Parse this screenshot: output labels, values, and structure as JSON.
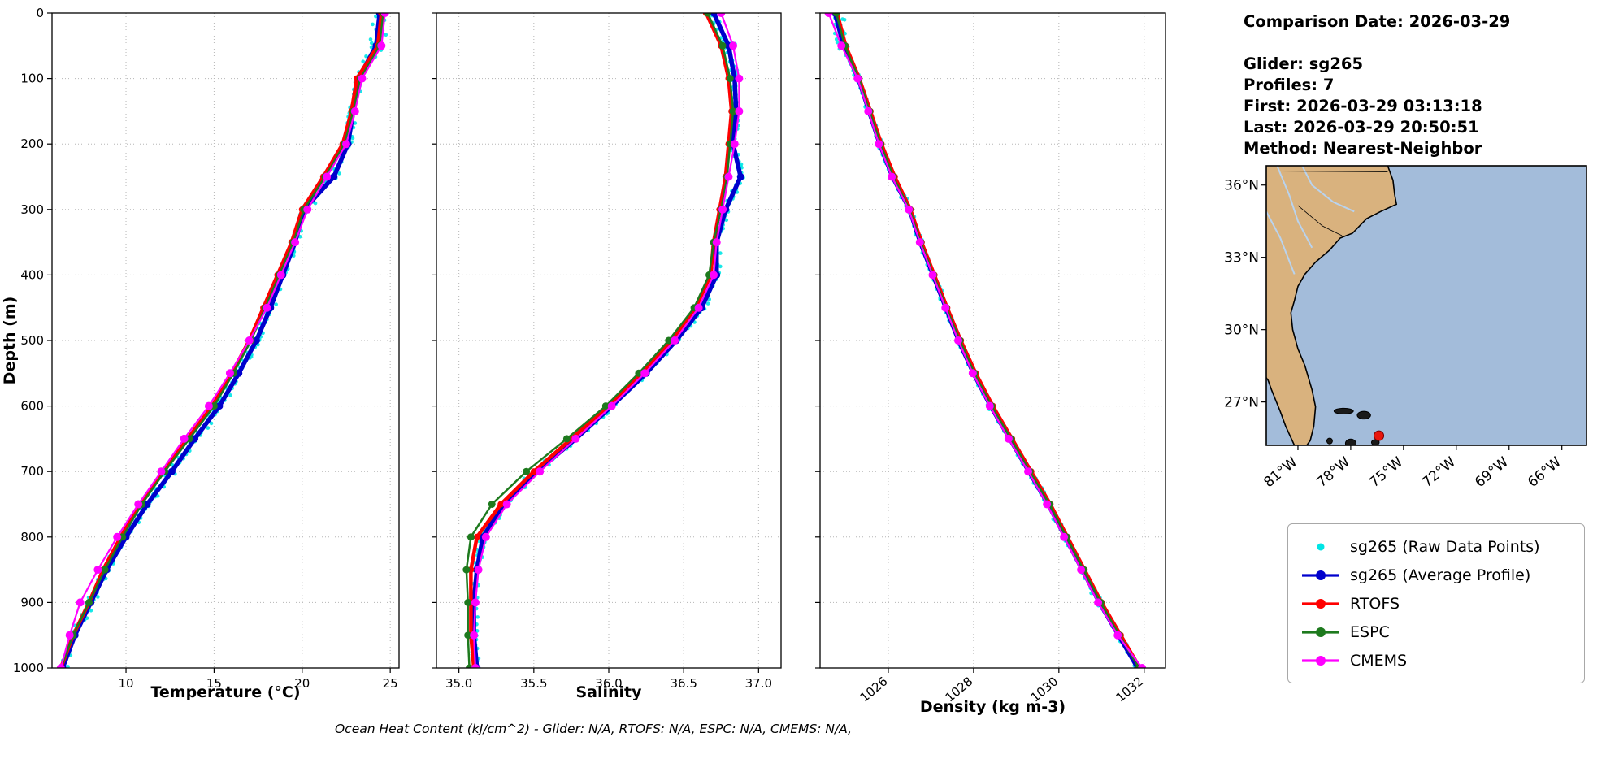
{
  "info": {
    "comparison_date": "Comparison Date: 2026-03-29",
    "glider": "Glider: sg265",
    "profiles": "Profiles: 7",
    "first": "First: 2026-03-29 03:13:18",
    "last": "Last: 2026-03-29 20:50:51",
    "method": "Method: Nearest-Neighbor"
  },
  "caption": "Ocean Heat Content (kJ/cm^2) - Glider: N/A,  RTOFS: N/A,  ESPC: N/A,  CMEMS: N/A,",
  "legend": {
    "entries": [
      {
        "label": "sg265 (Raw Data Points)",
        "color": "#00e5e5",
        "line": false,
        "marker_r": 4.5
      },
      {
        "label": "sg265 (Average Profile)",
        "color": "#0000cd",
        "line": true,
        "marker_r": 6
      },
      {
        "label": "RTOFS",
        "color": "#ff0000",
        "line": true,
        "marker_r": 6
      },
      {
        "label": "ESPC",
        "color": "#1e7a1e",
        "line": true,
        "marker_r": 6
      },
      {
        "label": "CMEMS",
        "color": "#ff00ff",
        "line": true,
        "marker_r": 6
      }
    ]
  },
  "map": {
    "bounds": {
      "lon_min": -82.8,
      "lon_max": -64.6,
      "lat_min": 25.2,
      "lat_max": 36.8
    },
    "lon_tick_values": [
      -81,
      -78,
      -75,
      -72,
      -69,
      -66
    ],
    "lon_tick_labels": [
      "81°W",
      "78°W",
      "75°W",
      "72°W",
      "69°W",
      "66°W"
    ],
    "lat_tick_values": [
      36,
      33,
      30,
      27
    ],
    "lat_tick_labels": [
      "36°N",
      "33°N",
      "30°N",
      "27°N"
    ],
    "land_color": "#d9b27e",
    "ocean_color": "#a3bcda",
    "marker": {
      "lon": -76.4,
      "lat": 25.6,
      "color": "#e8160c"
    }
  },
  "chart_data": [
    {
      "type": "line",
      "xlabel": "Temperature (°C)",
      "ylabel": "Depth (m)",
      "xlim": [
        5.8,
        25.5
      ],
      "ylim": [
        0,
        1000
      ],
      "xticks": [
        10,
        15,
        20,
        25
      ],
      "xtick_labels": [
        "10",
        "15",
        "20",
        "25"
      ],
      "yticks": [
        0,
        100,
        200,
        300,
        400,
        500,
        600,
        700,
        800,
        900,
        1000
      ],
      "depths": [
        0,
        50,
        100,
        150,
        200,
        250,
        300,
        350,
        400,
        450,
        500,
        550,
        600,
        650,
        700,
        750,
        800,
        850,
        900,
        950,
        1000
      ],
      "raw": {
        "name": "sg265 (Raw Data Points)",
        "color": "#00e5e5",
        "jitter": 0.45,
        "surface_jitter": 1.0
      },
      "series": [
        {
          "name": "sg265 (Average Profile)",
          "color": "#0000cd",
          "lw": 5.5,
          "ms": 4.5,
          "values": [
            24.4,
            24.2,
            23.2,
            22.9,
            22.6,
            21.8,
            20.1,
            19.6,
            18.9,
            18.2,
            17.4,
            16.4,
            15.3,
            13.9,
            12.6,
            11.2,
            10.0,
            8.9,
            8.0,
            7.1,
            6.4
          ]
        },
        {
          "name": "RTOFS",
          "color": "#ff0000",
          "lw": 4.5,
          "ms": 4,
          "values": [
            24.5,
            24.3,
            23.1,
            22.8,
            22.3,
            21.2,
            20.0,
            19.4,
            18.6,
            17.8,
            17.0,
            16.0,
            14.9,
            13.5,
            12.1,
            10.8,
            9.7,
            8.7,
            7.9,
            7.0,
            6.3
          ]
        },
        {
          "name": "ESPC",
          "color": "#1e7a1e",
          "lw": 2.5,
          "ms": 4.5,
          "values": [
            24.6,
            24.4,
            23.3,
            22.9,
            22.4,
            21.3,
            20.1,
            19.5,
            18.7,
            17.9,
            17.1,
            16.1,
            15.0,
            13.6,
            12.2,
            10.9,
            9.8,
            8.8,
            7.9,
            7.0,
            6.3
          ]
        },
        {
          "name": "CMEMS",
          "color": "#ff00ff",
          "lw": 2.2,
          "ms": 5,
          "values": [
            24.7,
            24.5,
            23.4,
            23.0,
            22.5,
            21.4,
            20.3,
            19.6,
            18.8,
            18.0,
            17.0,
            15.9,
            14.7,
            13.3,
            12.0,
            10.7,
            9.5,
            8.4,
            7.4,
            6.8,
            6.3
          ]
        }
      ]
    },
    {
      "type": "line",
      "xlabel": "Salinity",
      "ylabel": "",
      "xlim": [
        34.85,
        37.15
      ],
      "ylim": [
        0,
        1000
      ],
      "xticks": [
        35.0,
        35.5,
        36.0,
        36.5,
        37.0
      ],
      "xtick_labels": [
        "35.0",
        "35.5",
        "36.0",
        "36.5",
        "37.0"
      ],
      "yticks": [
        0,
        100,
        200,
        300,
        400,
        500,
        600,
        700,
        800,
        900,
        1000
      ],
      "depths": [
        0,
        50,
        100,
        150,
        200,
        250,
        300,
        350,
        400,
        450,
        500,
        550,
        600,
        650,
        700,
        750,
        800,
        850,
        900,
        950,
        1000
      ],
      "raw": {
        "name": "sg265 (Raw Data Points)",
        "color": "#00e5e5",
        "jitter": 0.05,
        "surface_jitter": 0.1
      },
      "series": [
        {
          "name": "sg265 (Average Profile)",
          "color": "#0000cd",
          "lw": 5.5,
          "ms": 4.5,
          "values": [
            36.7,
            36.8,
            36.84,
            36.85,
            36.83,
            36.88,
            36.78,
            36.72,
            36.72,
            36.62,
            36.45,
            36.25,
            36.02,
            35.78,
            35.52,
            35.3,
            35.16,
            35.12,
            35.1,
            35.1,
            35.12
          ]
        },
        {
          "name": "RTOFS",
          "color": "#ff0000",
          "lw": 4.5,
          "ms": 4,
          "values": [
            36.65,
            36.75,
            36.8,
            36.82,
            36.8,
            36.78,
            36.74,
            36.7,
            36.68,
            36.58,
            36.42,
            36.22,
            36.0,
            35.75,
            35.5,
            35.28,
            35.12,
            35.08,
            35.08,
            35.08,
            35.1
          ]
        },
        {
          "name": "ESPC",
          "color": "#1e7a1e",
          "lw": 2.5,
          "ms": 4.5,
          "values": [
            36.66,
            36.76,
            36.81,
            36.83,
            36.81,
            36.79,
            36.75,
            36.7,
            36.67,
            36.57,
            36.4,
            36.2,
            35.98,
            35.72,
            35.45,
            35.22,
            35.08,
            35.05,
            35.06,
            35.06,
            35.07
          ]
        },
        {
          "name": "CMEMS",
          "color": "#ff00ff",
          "lw": 2.2,
          "ms": 5,
          "values": [
            36.75,
            36.83,
            36.87,
            36.87,
            36.84,
            36.8,
            36.76,
            36.72,
            36.7,
            36.6,
            36.44,
            36.24,
            36.02,
            35.78,
            35.54,
            35.32,
            35.18,
            35.13,
            35.11,
            35.1,
            35.11
          ]
        }
      ]
    },
    {
      "type": "line",
      "xlabel": "Density (kg m-3)",
      "ylabel": "",
      "xlim": [
        1024.4,
        1032.5
      ],
      "ylim": [
        0,
        1000
      ],
      "xticks": [
        1026,
        1028,
        1030,
        1032
      ],
      "xtick_labels": [
        "1026",
        "1028",
        "1030",
        "1032"
      ],
      "rotate_xticks": true,
      "yticks": [
        0,
        100,
        200,
        300,
        400,
        500,
        600,
        700,
        800,
        900,
        1000
      ],
      "depths": [
        0,
        50,
        100,
        150,
        200,
        250,
        300,
        350,
        400,
        450,
        500,
        550,
        600,
        650,
        700,
        750,
        800,
        850,
        900,
        950,
        1000
      ],
      "raw": {
        "name": "sg265 (Raw Data Points)",
        "color": "#00e5e5",
        "jitter": 0.1,
        "surface_jitter": 0.35
      },
      "series": [
        {
          "name": "sg265 (Average Profile)",
          "color": "#0000cd",
          "lw": 5.5,
          "ms": 4.5,
          "values": [
            1024.75,
            1024.95,
            1025.3,
            1025.55,
            1025.8,
            1026.1,
            1026.5,
            1026.75,
            1027.05,
            1027.35,
            1027.65,
            1028.0,
            1028.4,
            1028.85,
            1029.3,
            1029.75,
            1030.15,
            1030.55,
            1030.95,
            1031.4,
            1031.85
          ]
        },
        {
          "name": "RTOFS",
          "color": "#ff0000",
          "lw": 4.5,
          "ms": 4,
          "values": [
            1024.8,
            1025.0,
            1025.32,
            1025.58,
            1025.84,
            1026.15,
            1026.52,
            1026.78,
            1027.08,
            1027.38,
            1027.7,
            1028.05,
            1028.45,
            1028.9,
            1029.35,
            1029.8,
            1030.2,
            1030.6,
            1031.0,
            1031.45,
            1031.9
          ]
        },
        {
          "name": "ESPC",
          "color": "#1e7a1e",
          "lw": 2.5,
          "ms": 4.5,
          "values": [
            1024.78,
            1024.98,
            1025.31,
            1025.56,
            1025.82,
            1026.12,
            1026.5,
            1026.76,
            1027.06,
            1027.36,
            1027.68,
            1028.02,
            1028.42,
            1028.88,
            1029.32,
            1029.78,
            1030.18,
            1030.58,
            1030.98,
            1031.42,
            1031.88
          ]
        },
        {
          "name": "CMEMS",
          "color": "#ff00ff",
          "lw": 2.2,
          "ms": 5,
          "values": [
            1024.6,
            1024.9,
            1025.28,
            1025.53,
            1025.78,
            1026.08,
            1026.48,
            1026.74,
            1027.04,
            1027.34,
            1027.64,
            1027.98,
            1028.38,
            1028.82,
            1029.28,
            1029.72,
            1030.12,
            1030.52,
            1030.92,
            1031.38,
            1031.95
          ]
        }
      ]
    }
  ]
}
